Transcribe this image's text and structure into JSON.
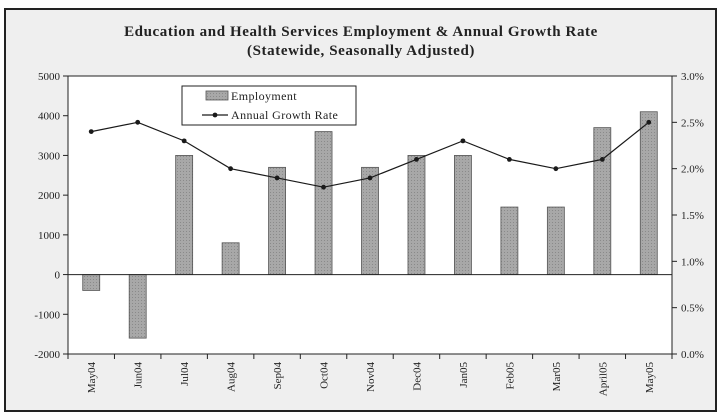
{
  "chart_data": {
    "type": "bar",
    "title": "Education and Health Services Employment & Annual Growth Rate",
    "subtitle": "(Statewide, Seasonally Adjusted)",
    "categories": [
      "May04",
      "Jun04",
      "Jul04",
      "Aug04",
      "Sep04",
      "Oct04",
      "Nov04",
      "Dec04",
      "Jan05",
      "Feb05",
      "Mar05",
      "April05",
      "May05"
    ],
    "series": [
      {
        "name": "Employment",
        "type": "bar",
        "axis": "left",
        "color": "#a8a8a8",
        "values": [
          -400,
          -1600,
          3000,
          800,
          2700,
          3600,
          2700,
          3000,
          3000,
          1700,
          1700,
          3700,
          4100
        ]
      },
      {
        "name": "Annual Growth Rate",
        "type": "line",
        "axis": "right",
        "color": "#1a1a1a",
        "values": [
          2.4,
          2.5,
          2.3,
          2.0,
          1.9,
          1.8,
          1.9,
          2.1,
          2.3,
          2.1,
          2.0,
          2.1,
          2.5
        ]
      }
    ],
    "y_left": {
      "ylim": [
        -2000,
        5000
      ],
      "ticks": [
        -2000,
        -1000,
        0,
        1000,
        2000,
        3000,
        4000,
        5000
      ],
      "tick_labels": [
        "-2000",
        "-1000",
        "0",
        "1000",
        "2000",
        "3000",
        "4000",
        "5000"
      ]
    },
    "y_right": {
      "ylim": [
        0,
        3.0
      ],
      "ticks": [
        0,
        0.5,
        1.0,
        1.5,
        2.0,
        2.5,
        3.0
      ],
      "tick_labels": [
        "0.0%",
        "0.5%",
        "1.0%",
        "1.5%",
        "2.0%",
        "2.5%",
        "3.0%"
      ]
    },
    "grid": false,
    "legend": "top-left",
    "background_color": "#efefef",
    "plot_background_color": "#ffffff"
  }
}
